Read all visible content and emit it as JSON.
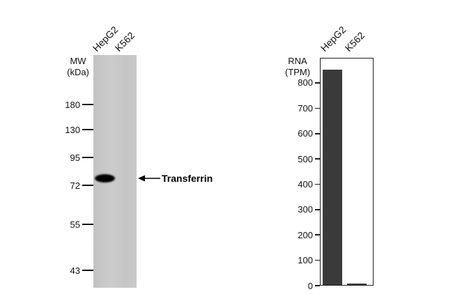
{
  "figure": {
    "background": "#ffffff"
  },
  "western_blot": {
    "lane_labels": [
      "HepG2",
      "K562"
    ],
    "axis_label_lines": [
      "MW",
      "(kDa)"
    ],
    "mw_markers": [
      "180",
      "130",
      "95",
      "72",
      "55",
      "43"
    ],
    "band_annotation": "Transferrin",
    "lane_color": "#c6c6c6",
    "band_color": "#0a0a0a"
  },
  "chart_data": {
    "type": "bar",
    "title": "",
    "ylabel": "RNA (TPM)",
    "ylabel_lines": [
      "RNA",
      "(TPM)"
    ],
    "categories": [
      "HepG2",
      "K562"
    ],
    "values": [
      850,
      5
    ],
    "yticks": [
      0,
      100,
      200,
      300,
      400,
      500,
      600,
      700,
      800
    ],
    "ylim": [
      0,
      900
    ],
    "bar_color": "#3a3a3a",
    "grid": false,
    "legend": false
  }
}
